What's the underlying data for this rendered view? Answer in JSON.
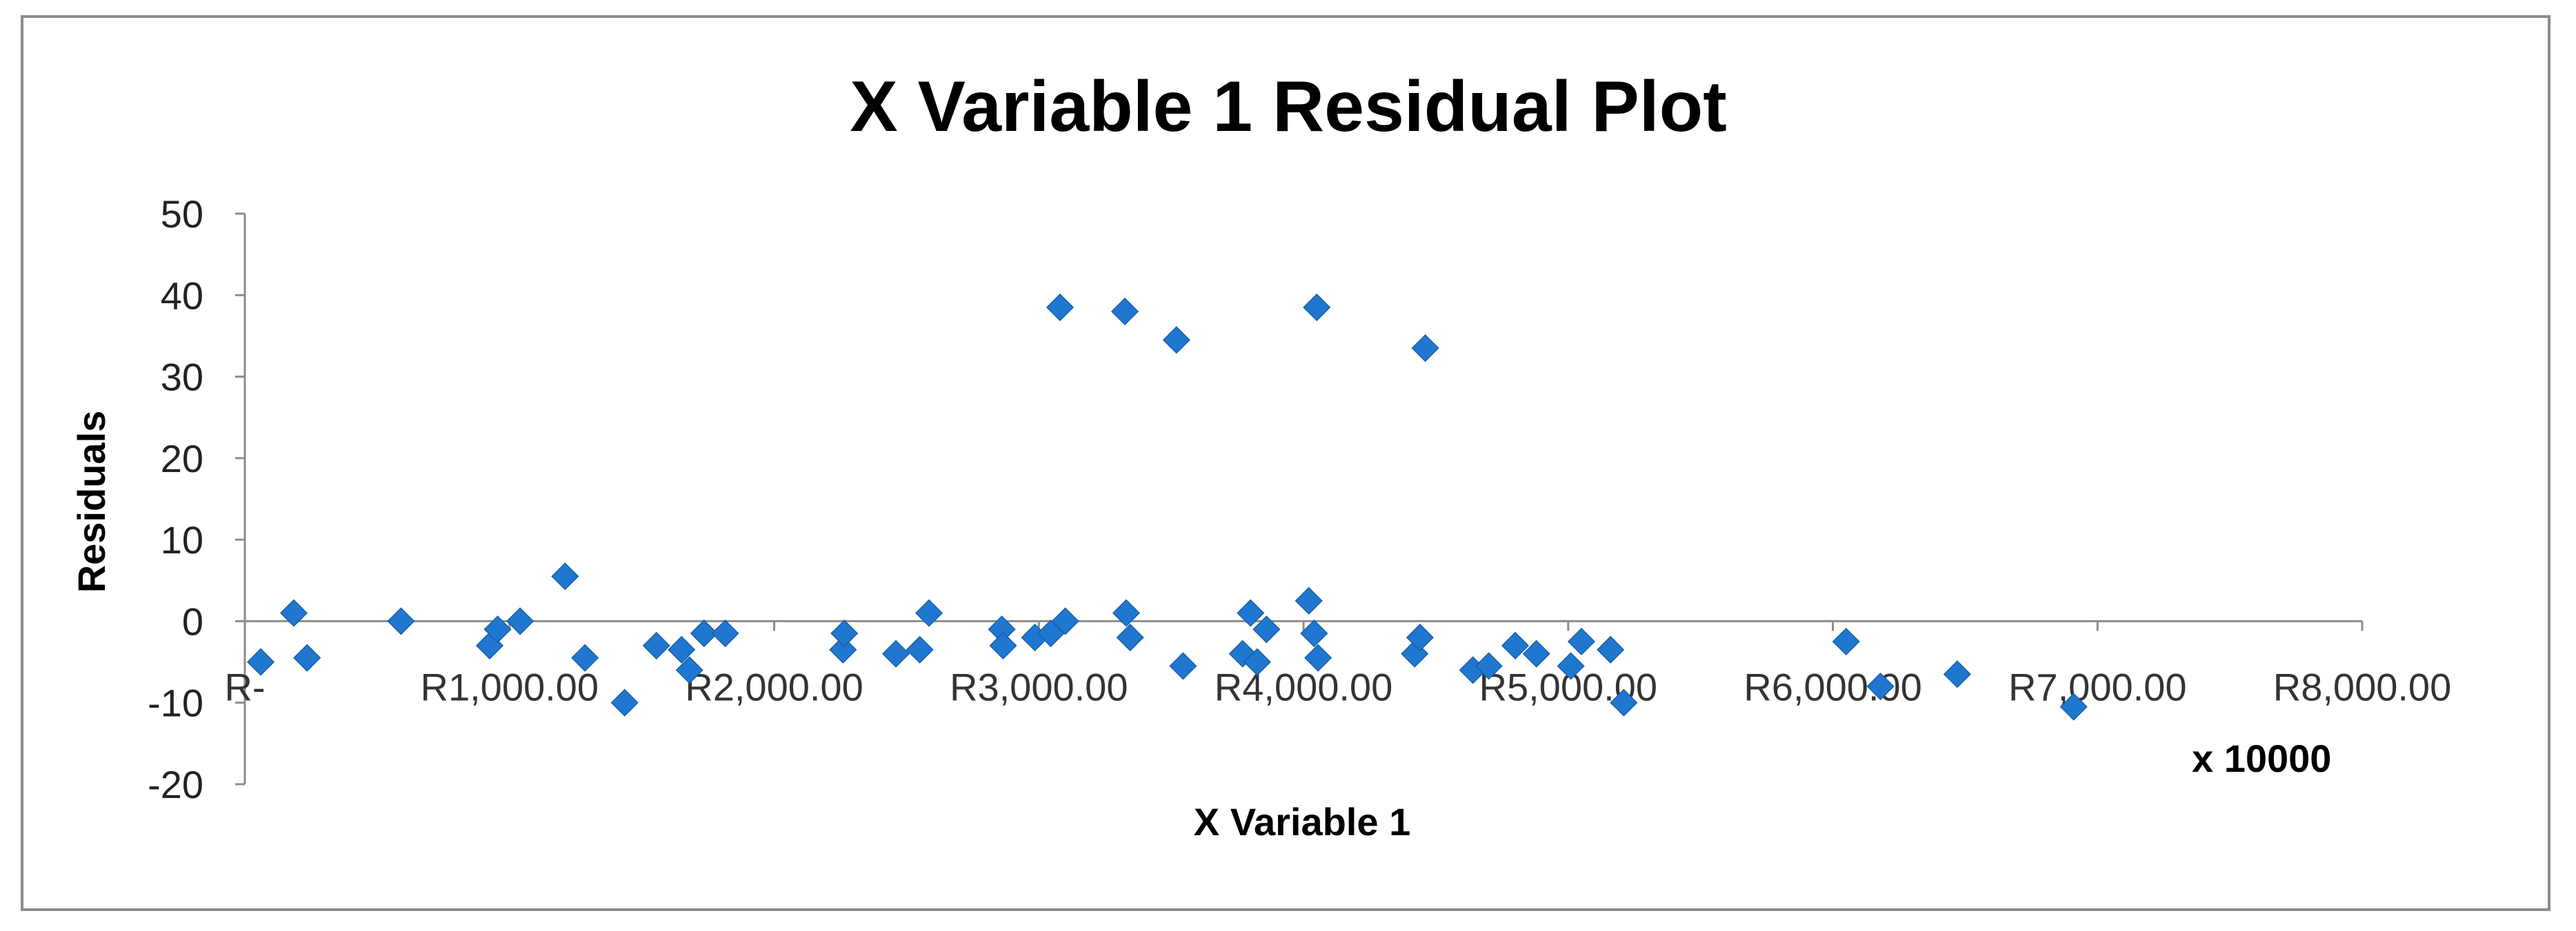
{
  "chart_data": {
    "type": "scatter",
    "title": "X Variable 1  Residual Plot",
    "xlabel": "X Variable 1",
    "ylabel": "Residuals",
    "x_unit_label": "x 10000",
    "xlim": [
      0,
      8000
    ],
    "ylim": [
      -20,
      50
    ],
    "y_ticks": [
      50,
      40,
      30,
      20,
      10,
      0,
      -10,
      -20
    ],
    "y_tick_labels": [
      "50",
      "40",
      "30",
      "20",
      "10",
      "0",
      "-10",
      "-20"
    ],
    "x_ticks": [
      0,
      1000,
      2000,
      3000,
      4000,
      5000,
      6000,
      7000,
      8000
    ],
    "x_tick_labels": [
      "R-",
      "R1,000.00",
      "R2,000.00",
      "R3,000.00",
      "R4,000.00",
      "R5,000.00",
      "R6,000.00",
      "R7,000.00",
      "R8,000.00"
    ],
    "grid": false,
    "marker_color": "#1f77d0",
    "series": [
      {
        "points": [
          {
            "x": 60,
            "y": -5
          },
          {
            "x": 185,
            "y": 1
          },
          {
            "x": 235,
            "y": -4.5
          },
          {
            "x": 590,
            "y": 0
          },
          {
            "x": 925,
            "y": -3
          },
          {
            "x": 955,
            "y": -1
          },
          {
            "x": 1040,
            "y": 0
          },
          {
            "x": 1210,
            "y": 5.5
          },
          {
            "x": 1285,
            "y": -4.5
          },
          {
            "x": 1435,
            "y": -10
          },
          {
            "x": 1555,
            "y": -3
          },
          {
            "x": 1650,
            "y": -3.5
          },
          {
            "x": 1680,
            "y": -6
          },
          {
            "x": 1735,
            "y": -1.5
          },
          {
            "x": 1815,
            "y": -1.5
          },
          {
            "x": 2260,
            "y": -3.5
          },
          {
            "x": 2265,
            "y": -1.5
          },
          {
            "x": 2460,
            "y": -4
          },
          {
            "x": 2550,
            "y": -3.5
          },
          {
            "x": 2585,
            "y": 1
          },
          {
            "x": 2860,
            "y": -1
          },
          {
            "x": 2865,
            "y": -3
          },
          {
            "x": 2985,
            "y": -2
          },
          {
            "x": 3045,
            "y": -1.5
          },
          {
            "x": 3080,
            "y": 38.5
          },
          {
            "x": 3100,
            "y": 0
          },
          {
            "x": 3325,
            "y": 38
          },
          {
            "x": 3330,
            "y": 1
          },
          {
            "x": 3345,
            "y": -2
          },
          {
            "x": 3520,
            "y": 34.5
          },
          {
            "x": 3545,
            "y": -5.5
          },
          {
            "x": 3770,
            "y": -4
          },
          {
            "x": 3800,
            "y": 1
          },
          {
            "x": 3825,
            "y": -5
          },
          {
            "x": 3860,
            "y": -1
          },
          {
            "x": 4020,
            "y": 2.5
          },
          {
            "x": 4040,
            "y": -1.5
          },
          {
            "x": 4050,
            "y": 38.5
          },
          {
            "x": 4055,
            "y": -4.5
          },
          {
            "x": 4420,
            "y": -4
          },
          {
            "x": 4440,
            "y": -2
          },
          {
            "x": 4460,
            "y": 33.5
          },
          {
            "x": 4640,
            "y": -6
          },
          {
            "x": 4700,
            "y": -5.5
          },
          {
            "x": 4800,
            "y": -3
          },
          {
            "x": 4880,
            "y": -4
          },
          {
            "x": 5010,
            "y": -5.5
          },
          {
            "x": 5050,
            "y": -2.5
          },
          {
            "x": 5160,
            "y": -3.5
          },
          {
            "x": 5210,
            "y": -10
          },
          {
            "x": 6050,
            "y": -2.5
          },
          {
            "x": 6180,
            "y": -8
          },
          {
            "x": 6470,
            "y": -6.5
          },
          {
            "x": 6910,
            "y": -10.5
          }
        ]
      }
    ]
  }
}
